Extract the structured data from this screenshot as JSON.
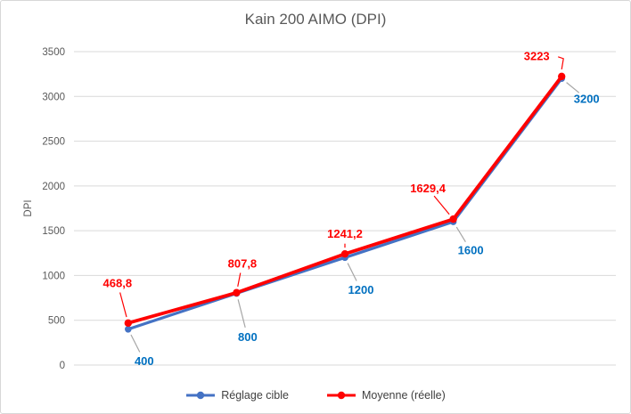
{
  "chart_data": {
    "type": "line",
    "title": "Kain 200 AIMO (DPI)",
    "xlabel": "",
    "ylabel": "DPI",
    "categories": [
      "400",
      "800",
      "1200",
      "1600",
      "3200"
    ],
    "y_ticks": [
      0,
      500,
      1000,
      1500,
      2000,
      2500,
      3000,
      3500
    ],
    "ylim": [
      0,
      3500
    ],
    "grid": "horizontal",
    "legend_position": "bottom",
    "series": [
      {
        "name": "Réglage cible",
        "color": "#4472C4",
        "label_color": "#0070C0",
        "values": [
          400,
          800,
          1200,
          1600,
          3200
        ],
        "labels": [
          "400",
          "800",
          "1200",
          "1600",
          "3200"
        ]
      },
      {
        "name": "Moyenne (réelle)",
        "color": "#FF0000",
        "label_color": "#FF0000",
        "values": [
          468.8,
          807.8,
          1241.2,
          1629.4,
          3223
        ],
        "labels": [
          "468,8",
          "807,8",
          "1241,2",
          "1629,4",
          "3223"
        ]
      }
    ]
  },
  "colors": {
    "grid": "#D9D9D9",
    "axis_text": "#595959",
    "title_text": "#595959",
    "legend_text": "#404040",
    "leader_line": "#A6A6A6"
  }
}
